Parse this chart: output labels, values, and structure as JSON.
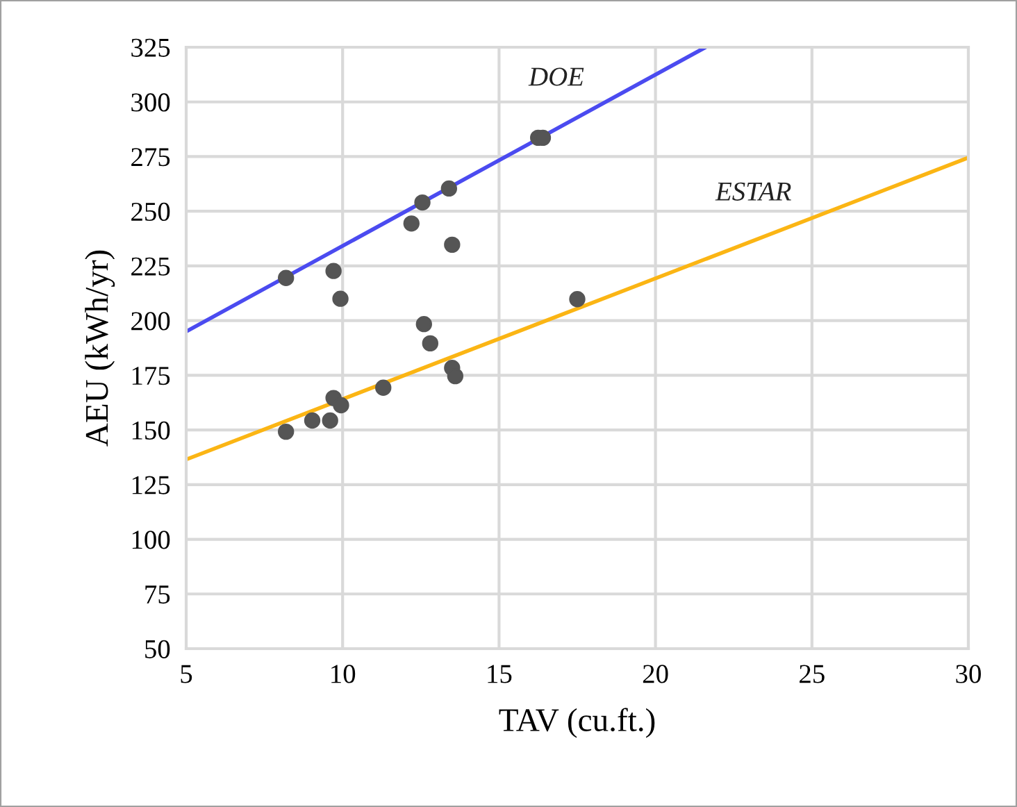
{
  "chart_data": {
    "type": "scatter",
    "xlabel": "TAV (cu.ft.)",
    "ylabel": "AEU (kWh/yr)",
    "xlim": [
      5,
      30
    ],
    "xticks": [
      5,
      10,
      15,
      20,
      25,
      30
    ],
    "ylim": [
      50,
      325
    ],
    "yticks": [
      50,
      75,
      100,
      125,
      150,
      175,
      200,
      225,
      250,
      275,
      300,
      325
    ],
    "grid": true,
    "legend": false,
    "series": [
      {
        "type": "line",
        "name": "DOE",
        "color": "#4b4bf0",
        "x": [
          5,
          21.6
        ],
        "values": [
          195,
          325
        ],
        "marker": "none",
        "line_style": "solid"
      },
      {
        "type": "line",
        "name": "ESTAR",
        "color": "#fbb514",
        "x": [
          5,
          30
        ],
        "values": [
          136.5,
          274.5
        ],
        "marker": "none",
        "line_style": "solid"
      },
      {
        "color": "#555555",
        "marker": "circle",
        "x": [
          8.19,
          9.71,
          9.93,
          12.2,
          12.55,
          13.4,
          13.5,
          12.6,
          12.8,
          13.5,
          13.6,
          11.3,
          9.71,
          9.95,
          9.03,
          9.6,
          8.19,
          16.25,
          16.4,
          17.5
        ],
        "values": [
          219.5,
          222.7,
          210,
          244.4,
          254,
          260.4,
          234.7,
          198.4,
          189.6,
          178.4,
          174.6,
          169.3,
          164.6,
          161.3,
          154.3,
          154.3,
          149.2,
          283.6,
          283.6,
          209.8
        ]
      }
    ]
  }
}
